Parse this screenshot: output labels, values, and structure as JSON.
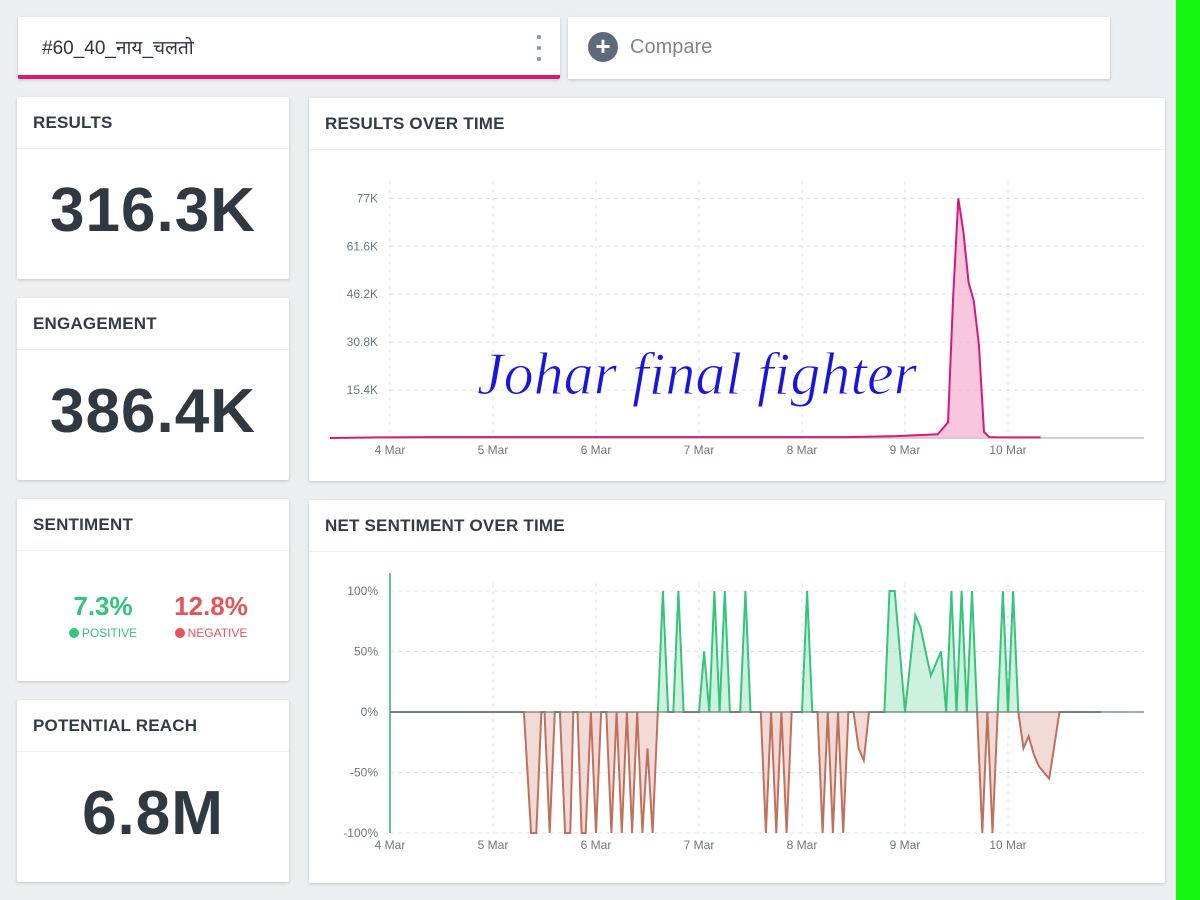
{
  "query_tab": {
    "label": "#60_40_नाय_चलतो",
    "menu_icon": "kebab-icon"
  },
  "compare_tab": {
    "label": "Compare",
    "icon": "plus-circle-icon"
  },
  "results": {
    "title": "RESULTS",
    "value": "316.3K"
  },
  "engagement": {
    "title": "ENGAGEMENT",
    "value": "386.4K"
  },
  "sentiment": {
    "title": "SENTIMENT",
    "positive_value": "7.3%",
    "positive_label": "POSITIVE",
    "negative_value": "12.8%",
    "negative_label": "NEGATIVE"
  },
  "reach": {
    "title": "POTENTIAL REACH",
    "value": "6.8M"
  },
  "watermark": "Johar final fighter",
  "colors": {
    "accent": "#d6197c",
    "positive": "#34c47c",
    "negative": "#e5545a",
    "neg_line": "#c0705e",
    "side_bar": "#14f50f"
  },
  "chart_data": [
    {
      "type": "area",
      "title": "RESULTS OVER TIME",
      "x_ticks": [
        "4 Mar",
        "5 Mar",
        "6 Mar",
        "7 Mar",
        "8 Mar",
        "9 Mar",
        "10 Mar"
      ],
      "y_ticks": [
        "77K",
        "61.6K",
        "46.2K",
        "30.8K",
        "15.4K"
      ],
      "ylim": [
        0,
        80000
      ],
      "x": [
        0,
        0.5,
        1,
        2,
        3,
        4,
        5,
        5.5,
        5.9,
        6.0,
        6.05,
        6.1,
        6.15,
        6.2,
        6.25,
        6.3,
        6.35,
        6.4,
        6.5,
        6.6,
        6.9
      ],
      "values": [
        0,
        200,
        300,
        300,
        300,
        300,
        300,
        600,
        1200,
        5000,
        45000,
        77000,
        66000,
        50000,
        44000,
        30000,
        2000,
        300,
        200,
        200,
        200
      ],
      "series": [
        {
          "values_ref": "values"
        }
      ]
    },
    {
      "type": "area",
      "title": "NET SENTIMENT OVER TIME",
      "x_ticks": [
        "4 Mar",
        "5 Mar",
        "6 Mar",
        "7 Mar",
        "8 Mar",
        "9 Mar",
        "10 Mar"
      ],
      "y_ticks": [
        "100%",
        "50%",
        "0%",
        "-50%",
        "-100%"
      ],
      "ylim": [
        -100,
        100
      ],
      "x": [
        0,
        1.3,
        1.37,
        1.42,
        1.47,
        1.5,
        1.55,
        1.6,
        1.65,
        1.7,
        1.75,
        1.78,
        1.82,
        1.86,
        1.9,
        1.95,
        2.0,
        2.05,
        2.1,
        2.15,
        2.2,
        2.25,
        2.3,
        2.35,
        2.4,
        2.45,
        2.5,
        2.55,
        2.6,
        2.65,
        2.7,
        2.75,
        2.8,
        2.85,
        3.0,
        3.05,
        3.1,
        3.15,
        3.2,
        3.25,
        3.3,
        3.4,
        3.45,
        3.5,
        3.55,
        3.6,
        3.65,
        3.7,
        3.75,
        3.8,
        3.85,
        3.9,
        4.0,
        4.05,
        4.1,
        4.15,
        4.2,
        4.25,
        4.3,
        4.35,
        4.4,
        4.45,
        4.5,
        4.55,
        4.6,
        4.65,
        4.7,
        4.8,
        4.85,
        4.9,
        5.0,
        5.1,
        5.15,
        5.2,
        5.25,
        5.3,
        5.35,
        5.4,
        5.45,
        5.5,
        5.55,
        5.6,
        5.65,
        5.7,
        5.75,
        5.8,
        5.85,
        5.9,
        5.95,
        6.0,
        6.05,
        6.1,
        6.15,
        6.2,
        6.25,
        6.3,
        6.35,
        6.4,
        6.5,
        6.6,
        6.7,
        6.9
      ],
      "values": [
        0,
        0,
        -100,
        -100,
        0,
        0,
        -100,
        0,
        0,
        -100,
        -100,
        0,
        0,
        -100,
        -100,
        0,
        -100,
        0,
        0,
        -100,
        0,
        -100,
        0,
        -100,
        0,
        -100,
        -30,
        -100,
        0,
        100,
        0,
        0,
        100,
        0,
        0,
        50,
        0,
        100,
        0,
        100,
        0,
        0,
        100,
        0,
        0,
        0,
        -100,
        0,
        -100,
        0,
        -100,
        0,
        0,
        100,
        0,
        0,
        -100,
        0,
        -100,
        0,
        -100,
        0,
        0,
        -30,
        -40,
        0,
        0,
        0,
        100,
        100,
        0,
        80,
        70,
        50,
        30,
        40,
        50,
        0,
        100,
        0,
        100,
        0,
        100,
        0,
        -100,
        0,
        -100,
        0,
        100,
        0,
        100,
        0,
        -30,
        -20,
        -35,
        -45,
        -50,
        -55,
        0,
        0,
        0,
        0
      ],
      "series": [
        {
          "values_ref": "values"
        }
      ]
    }
  ]
}
